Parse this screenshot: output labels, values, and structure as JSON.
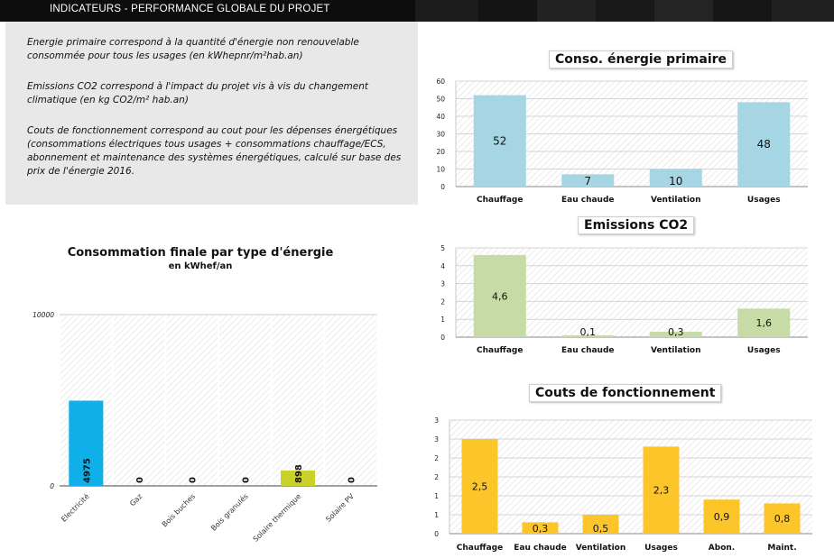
{
  "header": {
    "title": "INDICATEURS - PERFORMANCE GLOBALE DU PROJET"
  },
  "info": {
    "p1": "Energie primaire correspond à la quantité d'énergie non renouvelable consommée pour tous les usages (en kWhepnr/m²hab.an)",
    "p2": "Emissions CO2 correspond à l'impact du projet vis à vis du changement climatique (en kg CO2/m² hab.an)",
    "p3": "Couts de fonctionnement correspond au cout pour les dépenses énergétiques (consommations électriques tous usages + consommations chauffage/ECS, abonnement et maintenance des systèmes énergétiques, calculé sur base des prix de l'énergie 2016."
  },
  "colors": {
    "primary": "#a6d6e3",
    "co2": "#c6dba5",
    "couts": "#fcc52a",
    "elec": "#0fb0ea",
    "solaire": "#cad22a"
  },
  "chart_data": [
    {
      "id": "finale",
      "type": "bar",
      "title": "Consommation finale par type d'énergie",
      "subtitle": "en kWhef/an",
      "categories": [
        "Electricité",
        "Gaz",
        "Bois buches",
        "Bois granulés",
        "Solaire thermique",
        "Solaire PV"
      ],
      "values": [
        4975,
        0,
        0,
        0,
        898,
        0
      ],
      "data_labels": [
        "4975",
        "0",
        "0",
        "0",
        "898",
        "0"
      ],
      "yticks": [
        "0",
        "10000"
      ],
      "ylim": [
        0,
        10000
      ],
      "grid": false,
      "legend": "none"
    },
    {
      "id": "primaire",
      "type": "bar",
      "title": "Conso. énergie primaire",
      "categories": [
        "Chauffage",
        "Eau chaude",
        "Ventilation",
        "Usages"
      ],
      "values": [
        52,
        7,
        10,
        48
      ],
      "data_labels": [
        "52",
        "7",
        "10",
        "48"
      ],
      "yticks": [
        "0",
        "10",
        "20",
        "30",
        "40",
        "50",
        "60"
      ],
      "ylim": [
        0,
        60
      ],
      "grid": true,
      "legend": "none"
    },
    {
      "id": "co2",
      "type": "bar",
      "title": "Emissions CO2",
      "categories": [
        "Chauffage",
        "Eau chaude",
        "Ventilation",
        "Usages"
      ],
      "values": [
        4.6,
        0.1,
        0.3,
        1.6
      ],
      "data_labels": [
        "4,6",
        "0,1",
        "0,3",
        "1,6"
      ],
      "yticks": [
        "0",
        "1",
        "2",
        "3",
        "4",
        "5"
      ],
      "ylim": [
        0,
        5
      ],
      "grid": true,
      "legend": "none"
    },
    {
      "id": "couts",
      "type": "bar",
      "title": "Couts de fonctionnement",
      "categories": [
        "Chauffage",
        "Eau chaude",
        "Ventilation",
        "Usages",
        "Abon.",
        "Maint."
      ],
      "values": [
        2.5,
        0.3,
        0.5,
        2.3,
        0.9,
        0.8
      ],
      "data_labels": [
        "2,5",
        "0,3",
        "0,5",
        "2,3",
        "0,9",
        "0,8"
      ],
      "yticks": [
        "0",
        "1",
        "1",
        "2",
        "2",
        "3",
        "3"
      ],
      "ylim": [
        0,
        3
      ],
      "grid": true,
      "legend": "none"
    }
  ]
}
